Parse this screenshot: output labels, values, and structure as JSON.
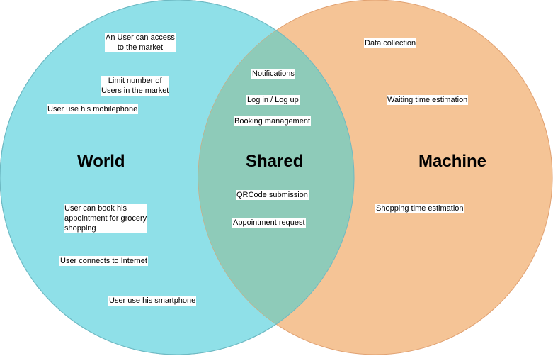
{
  "colors": {
    "world_fill": "#8fe0e8",
    "world_stroke": "#5fb4c4",
    "machine_fill": "#f5c496",
    "machine_stroke": "#e0a070",
    "overlap_fill": "#8ecbb9",
    "label_bg": "#ffffff"
  },
  "sets": {
    "world": "World",
    "shared": "Shared",
    "machine": "Machine"
  },
  "world_items": [
    "An User can access\nto the market",
    "Limit number of\nUsers in the market",
    "User use his mobilephone",
    "User can book his\nappointment for grocery\nshopping",
    "User connects to Internet",
    "User use his smartphone"
  ],
  "shared_items": [
    "Notifications",
    "Log in / Log up",
    "Booking management",
    "QRCode submission",
    "Appointment request"
  ],
  "machine_items": [
    "Data collection",
    "Waiting time estimation",
    "Shopping time estimation"
  ]
}
